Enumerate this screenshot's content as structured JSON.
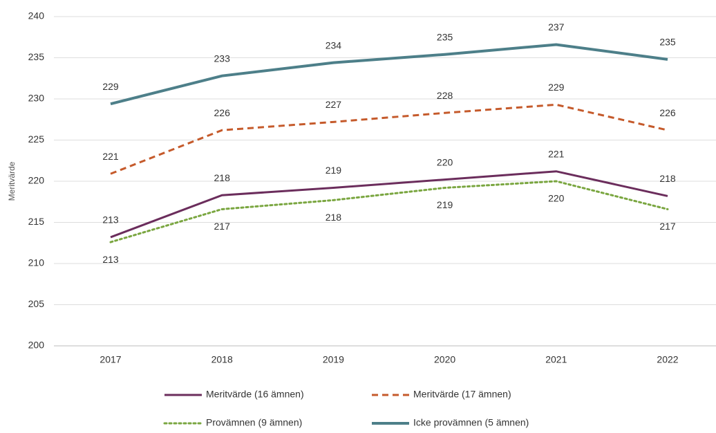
{
  "chart_data": {
    "type": "line",
    "y_label": "Meritvärde",
    "categories": [
      "2017",
      "2018",
      "2019",
      "2020",
      "2021",
      "2022"
    ],
    "series": [
      {
        "name": "Meritvärde (16 ämnen)",
        "color": "#6b2d5c",
        "line_style": "solid",
        "values": [
          213.2,
          218.3,
          219.2,
          220.2,
          221.2,
          218.2
        ],
        "value_labels": [
          "213",
          "218",
          "219",
          "220",
          "221",
          "218"
        ]
      },
      {
        "name": "Meritvärde (17 ämnen)",
        "color": "#c55a2b",
        "line_style": "dashed",
        "values": [
          220.9,
          226.2,
          227.2,
          228.3,
          229.3,
          226.2
        ],
        "value_labels": [
          "221",
          "226",
          "227",
          "228",
          "229",
          "226"
        ]
      },
      {
        "name": "Provämnen (9 ämnen)",
        "color": "#7aa640",
        "line_style": "dotted",
        "values": [
          212.6,
          216.6,
          217.7,
          219.2,
          220.0,
          216.6
        ],
        "value_labels": [
          "213",
          "217",
          "218",
          "219",
          "220",
          "217"
        ]
      },
      {
        "name": "Icke provämnen (5 ämnen)",
        "color": "#4d7f89",
        "line_style": "solid",
        "values": [
          229.4,
          232.8,
          234.4,
          235.4,
          236.6,
          234.8
        ],
        "value_labels": [
          "229",
          "233",
          "234",
          "235",
          "237",
          "235"
        ]
      }
    ],
    "ylim": [
      200,
      240
    ],
    "yticks": [
      200,
      205,
      210,
      215,
      220,
      225,
      230,
      235,
      240
    ],
    "grid": true,
    "legend": "bottom"
  }
}
